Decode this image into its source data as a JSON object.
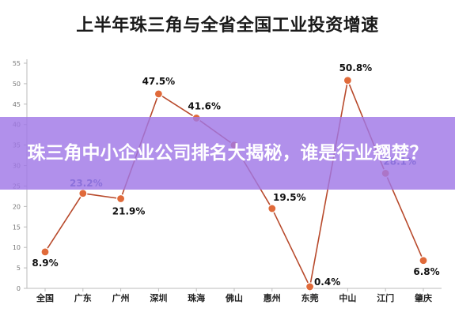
{
  "chart_data": {
    "type": "line",
    "title": "上半年珠三角与全省全国工业投资增速",
    "categories": [
      "全国",
      "广东",
      "广州",
      "深圳",
      "珠海",
      "佛山",
      "惠州",
      "东莞",
      "中山",
      "江门",
      "肇庆"
    ],
    "values": [
      8.9,
      23.2,
      21.9,
      47.5,
      41.6,
      35.0,
      19.5,
      0.4,
      50.8,
      28.1,
      6.8
    ],
    "point_labels": [
      "8.9%",
      "23.2%",
      "21.9%",
      "47.5%",
      "41.6%",
      "",
      "19.5%",
      "0.4%",
      "50.8%",
      "28.1%",
      "6.8%"
    ],
    "label_colors": [
      "#111111",
      "#2f4fa8",
      "#111111",
      "#111111",
      "#111111",
      "#111111",
      "#111111",
      "#111111",
      "#111111",
      "#2f4fa8",
      "#111111"
    ],
    "ylim": [
      0,
      55
    ],
    "yticks": [
      0,
      5,
      10,
      15,
      20,
      25,
      30,
      35,
      40,
      45,
      50,
      55
    ],
    "grid": false,
    "line_color": "#b84a2c",
    "marker_color": "#e06a3a"
  },
  "banner": {
    "text": "珠三角中小企业公司排名大揭秘，谁是行业翘楚？",
    "background": "#a078e6"
  }
}
